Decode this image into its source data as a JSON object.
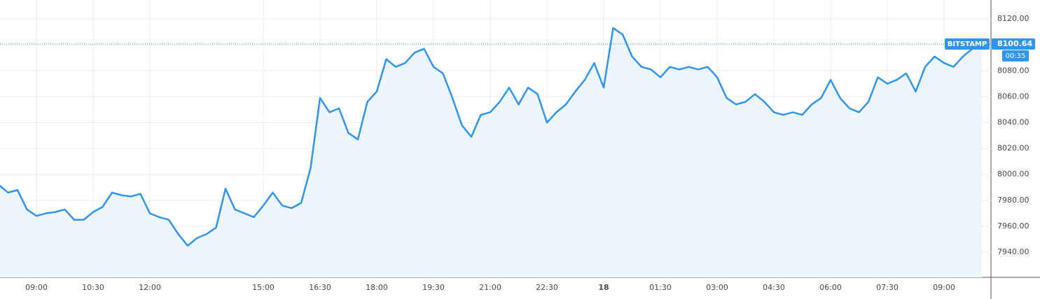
{
  "chart_data": {
    "type": "area",
    "x": [
      "08:00",
      "08:15",
      "08:30",
      "08:45",
      "09:00",
      "09:15",
      "09:30",
      "09:45",
      "10:00",
      "10:15",
      "10:30",
      "10:45",
      "11:00",
      "11:15",
      "11:30",
      "11:45",
      "12:00",
      "12:15",
      "12:30",
      "12:45",
      "13:00",
      "13:15",
      "13:30",
      "13:45",
      "14:00",
      "14:15",
      "14:30",
      "14:45",
      "15:00",
      "15:15",
      "15:30",
      "15:45",
      "16:00",
      "16:15",
      "16:30",
      "16:45",
      "17:00",
      "17:15",
      "17:30",
      "17:45",
      "18:00",
      "18:15",
      "18:30",
      "18:45",
      "19:00",
      "19:15",
      "19:30",
      "19:45",
      "20:00",
      "20:15",
      "20:30",
      "20:45",
      "21:00",
      "21:15",
      "21:30",
      "21:45",
      "22:00",
      "22:15",
      "22:30",
      "22:45",
      "23:00",
      "23:15",
      "23:30",
      "23:45",
      "00:00",
      "00:15",
      "00:30",
      "00:45",
      "01:00",
      "01:15",
      "01:30",
      "01:45",
      "02:00",
      "02:15",
      "02:30",
      "02:45",
      "03:00",
      "03:15",
      "03:30",
      "03:45",
      "04:00",
      "04:15",
      "04:30",
      "04:45",
      "05:00",
      "05:15",
      "05:30",
      "05:45",
      "06:00",
      "06:15",
      "06:30",
      "06:45",
      "07:00",
      "07:15",
      "07:30",
      "07:45",
      "08:00",
      "08:15",
      "08:30",
      "08:45",
      "09:00",
      "09:15",
      "09:30",
      "09:45",
      "10:00"
    ],
    "series": [
      {
        "name": "BITSTAMP",
        "color": "#2f95ee",
        "fill": "#eef5fc",
        "values": [
          7992,
          7986,
          7988,
          7973,
          7968,
          7970,
          7971,
          7973,
          7965,
          7965,
          7971,
          7975,
          7986,
          7984,
          7983,
          7985,
          7970,
          7967,
          7965,
          7954,
          7945,
          7951,
          7954,
          7959,
          7989,
          7973,
          7970,
          7967,
          7976,
          7986,
          7976,
          7974,
          7978,
          8005,
          8059,
          8048,
          8051,
          8032,
          8027,
          8056,
          8064,
          8089,
          8083,
          8086,
          8094,
          8097,
          8083,
          8078,
          8059,
          8038,
          8029,
          8046,
          8048,
          8056,
          8067,
          8054,
          8067,
          8062,
          8040,
          8048,
          8054,
          8064,
          8073,
          8086,
          8067,
          8113,
          8108,
          8091,
          8083,
          8081,
          8075,
          8083,
          8081,
          8083,
          8081,
          8083,
          8075,
          8059,
          8054,
          8056,
          8062,
          8056,
          8048,
          8046,
          8048,
          8046,
          8054,
          8059,
          8073,
          8059,
          8051,
          8048,
          8056,
          8075,
          8070,
          8073,
          8078,
          8064,
          8083,
          8091,
          8086,
          8083,
          8091,
          8097,
          8100.64
        ]
      }
    ],
    "countdown": "00:35",
    "ylim": [
      7920.6,
      8134.6
    ],
    "yticks": [
      {
        "value": 7940,
        "label": "7940.00"
      },
      {
        "value": 7960,
        "label": "7960.00"
      },
      {
        "value": 7980,
        "label": "7980.00"
      },
      {
        "value": 8000,
        "label": "8000.00"
      },
      {
        "value": 8020,
        "label": "8020.00"
      },
      {
        "value": 8040,
        "label": "8040.00"
      },
      {
        "value": 8060,
        "label": "8060.00"
      },
      {
        "value": 8080,
        "label": "8080.00"
      },
      {
        "value": 8100,
        "label": "8100.00"
      },
      {
        "value": 8120,
        "label": "8120.00"
      }
    ],
    "xticks": [
      "09:00",
      "10:30",
      "12:00",
      "15:00",
      "16:30",
      "18:00",
      "19:30",
      "21:00",
      "22:30",
      {
        "value": "00:00",
        "label": "18"
      },
      "01:30",
      "03:00",
      "04:30",
      "06:00",
      "07:30",
      "09:00"
    ],
    "grid": true
  }
}
